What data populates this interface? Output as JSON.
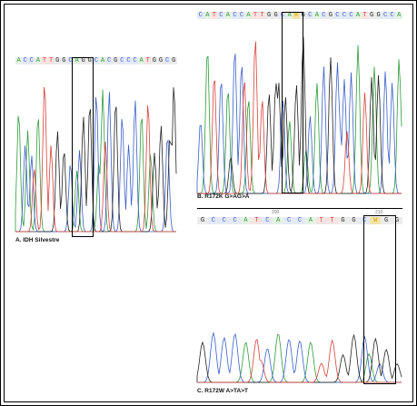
{
  "panels": [
    {
      "id": "A",
      "caption": "A. IDH Silvestre",
      "sequence": "ACCATTGGCAGGCACGCCCATGGCG",
      "positions": [],
      "highlight": [],
      "seed": 11,
      "colors": {
        "A": "#2e9b3a",
        "C": "#3a5fc8",
        "G": "#222222",
        "T": "#d9413a"
      }
    },
    {
      "id": "B",
      "caption": "B. R172K G>AG>A",
      "sequence": "CATCACCATTGGCARGCACGCCCATGGCCA",
      "positions": [],
      "highlight": [],
      "seed": 23,
      "colors": {
        "A": "#2e9b3a",
        "C": "#3a5fc8",
        "G": "#222222",
        "T": "#d9413a"
      }
    },
    {
      "id": "C",
      "caption": "C. R172W A>TA>T",
      "sequence": "GCCCATCACCATTGGCWGG",
      "positions": [
        "200",
        "210"
      ],
      "highlight": [],
      "seed": 37,
      "colors": {
        "A": "#2e9b3a",
        "C": "#3a5fc8",
        "G": "#222222",
        "T": "#d9413a"
      }
    }
  ]
}
